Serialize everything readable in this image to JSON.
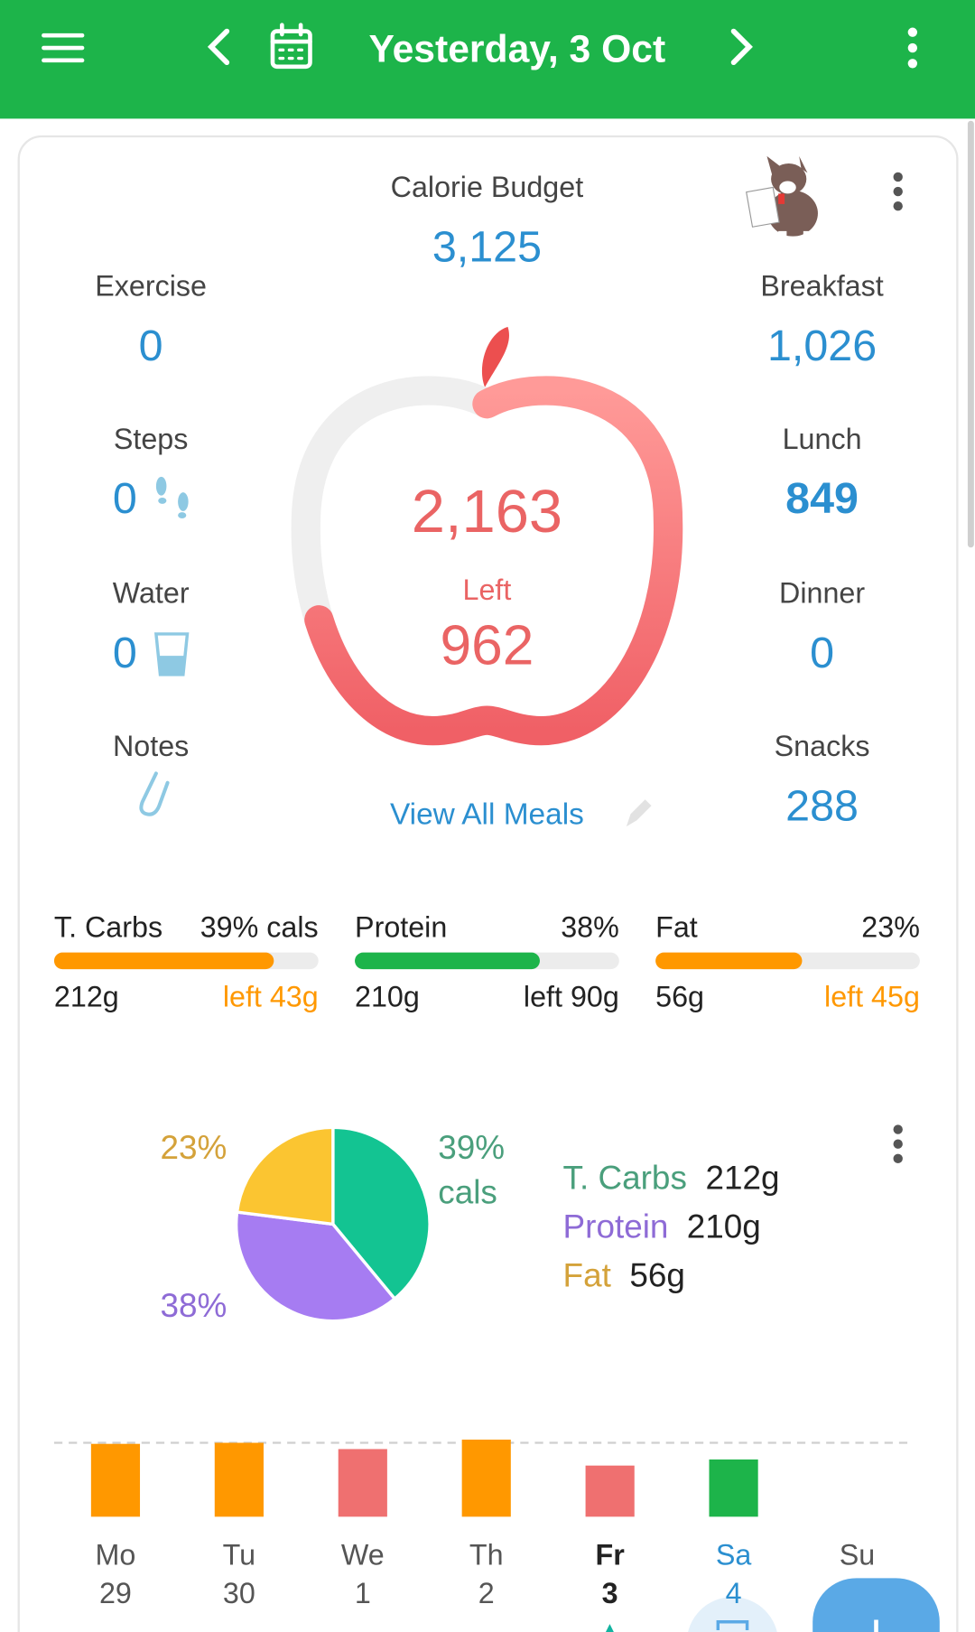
{
  "header": {
    "title": "Yesterday, 3 Oct"
  },
  "summary": {
    "budget_label": "Calorie Budget",
    "budget": {
      "value": 3125,
      "label": "3,125"
    },
    "left_column": [
      {
        "label": "Exercise",
        "value": "0"
      },
      {
        "label": "Steps",
        "value": "0"
      },
      {
        "label": "Water",
        "value": "0"
      },
      {
        "label": "Notes"
      }
    ],
    "right_column": [
      {
        "label": "Breakfast",
        "value": "1,026"
      },
      {
        "label": "Lunch",
        "value": "849"
      },
      {
        "label": "Dinner",
        "value": "0"
      },
      {
        "label": "Snacks",
        "value": "288"
      }
    ],
    "eaten": {
      "value": 2163,
      "label": "2,163"
    },
    "left_label": "Left",
    "left": "962",
    "link": "View All Meals"
  },
  "macros": [
    {
      "name": "T. Carbs",
      "percent": {
        "value": 39,
        "label": "39% cals"
      },
      "eaten": {
        "value": 212,
        "label": "212g"
      },
      "left": {
        "value": 43,
        "label": "left 43g"
      },
      "color": "#ff9800",
      "left_color": "#ff9800"
    },
    {
      "name": "Protein",
      "percent": {
        "value": 38,
        "label": "38%"
      },
      "eaten": {
        "value": 210,
        "label": "210g"
      },
      "left": {
        "value": 90,
        "label": "left 90g"
      },
      "color": "#1db44a",
      "left_color": "#222222"
    },
    {
      "name": "Fat",
      "percent": {
        "value": 23,
        "label": "23%"
      },
      "eaten": {
        "value": 56,
        "label": "56g"
      },
      "left": {
        "value": 45,
        "label": "left 45g"
      },
      "color": "#ff9800",
      "left_color": "#ff9800"
    }
  ],
  "pie": {
    "slices": [
      {
        "name": "T. Carbs",
        "value": 39,
        "label": "39% cals",
        "amount": "212g",
        "color": "#13c492",
        "text_color": "#4a9f7c"
      },
      {
        "name": "Protein",
        "value": 38,
        "label": "38%",
        "amount": "210g",
        "color": "#a67cf2",
        "text_color": "#8e6bd6"
      },
      {
        "name": "Fat",
        "value": 23,
        "label": "23%",
        "amount": "56g",
        "color": "#fbc531",
        "text_color": "#d4a23a"
      }
    ]
  },
  "week": {
    "days": [
      {
        "day": "Mo",
        "date": "29",
        "value": 3080,
        "color": "#ff9800"
      },
      {
        "day": "Tu",
        "date": "30",
        "value": 3125,
        "color": "#ff9800"
      },
      {
        "day": "We",
        "date": "1",
        "value": 2860,
        "color": "#ef7070"
      },
      {
        "day": "Th",
        "date": "2",
        "value": 3260,
        "color": "#ff9800"
      },
      {
        "day": "Fr",
        "date": "3",
        "value": 2163,
        "color": "#ef7070"
      },
      {
        "day": "Sa",
        "date": "4",
        "value": 2420,
        "color": "#1db44a"
      },
      {
        "day": "Su",
        "date": null,
        "value": null,
        "color": null
      }
    ]
  }
}
